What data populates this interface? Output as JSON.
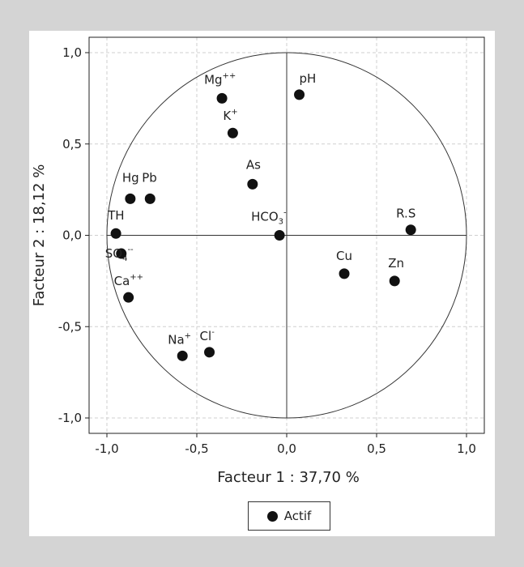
{
  "chart_data": {
    "type": "scatter",
    "xlabel": "Facteur 1 : 37,70 %",
    "ylabel": "Facteur 2 : 18,12 %",
    "xlim": [
      -1.0,
      1.0
    ],
    "ylim": [
      -1.0,
      1.0
    ],
    "x_ticks": [
      "-1,0",
      "-0,5",
      "0,0",
      "0,5",
      "1,0"
    ],
    "y_ticks": [
      "1,0",
      "0,5",
      "0,0",
      "-0,5",
      "-1,0"
    ],
    "grid": true,
    "unit_circle": true,
    "legend": {
      "label": "Actif",
      "placement": "bottom-center"
    },
    "points": [
      {
        "label": "Mg",
        "sup": "++",
        "sub": "",
        "x": -0.36,
        "y": 0.75
      },
      {
        "label": "pH",
        "sup": "",
        "sub": "",
        "x": 0.07,
        "y": 0.77
      },
      {
        "label": "K",
        "sup": "+",
        "sub": "",
        "x": -0.3,
        "y": 0.56
      },
      {
        "label": "As",
        "sup": "",
        "sub": "",
        "x": -0.19,
        "y": 0.28
      },
      {
        "label": "Hg",
        "sup": "",
        "sub": "",
        "x": -0.87,
        "y": 0.2
      },
      {
        "label": "Pb",
        "sup": "",
        "sub": "",
        "x": -0.76,
        "y": 0.2
      },
      {
        "label": "TH",
        "sup": "",
        "sub": "",
        "x": -0.95,
        "y": 0.01
      },
      {
        "label": "SO",
        "sup": "--",
        "sub": "4",
        "x": -0.92,
        "y": -0.1
      },
      {
        "label": "HCO",
        "sup": "-",
        "sub": "3",
        "x": -0.04,
        "y": 0.0
      },
      {
        "label": "R.S",
        "sup": "",
        "sub": "",
        "x": 0.69,
        "y": 0.03
      },
      {
        "label": "Cu",
        "sup": "",
        "sub": "",
        "x": 0.32,
        "y": -0.21
      },
      {
        "label": "Zn",
        "sup": "",
        "sub": "",
        "x": 0.6,
        "y": -0.25
      },
      {
        "label": "Ca",
        "sup": "++",
        "sub": "",
        "x": -0.88,
        "y": -0.34
      },
      {
        "label": "Na",
        "sup": "+",
        "sub": "",
        "x": -0.58,
        "y": -0.66
      },
      {
        "label": "Cl",
        "sup": "-",
        "sub": "",
        "x": -0.43,
        "y": -0.64
      }
    ]
  },
  "colors": {
    "background": "#d4d4d4",
    "panel": "#ffffff",
    "marker": "#111111",
    "grid": "#cfcfcf"
  }
}
